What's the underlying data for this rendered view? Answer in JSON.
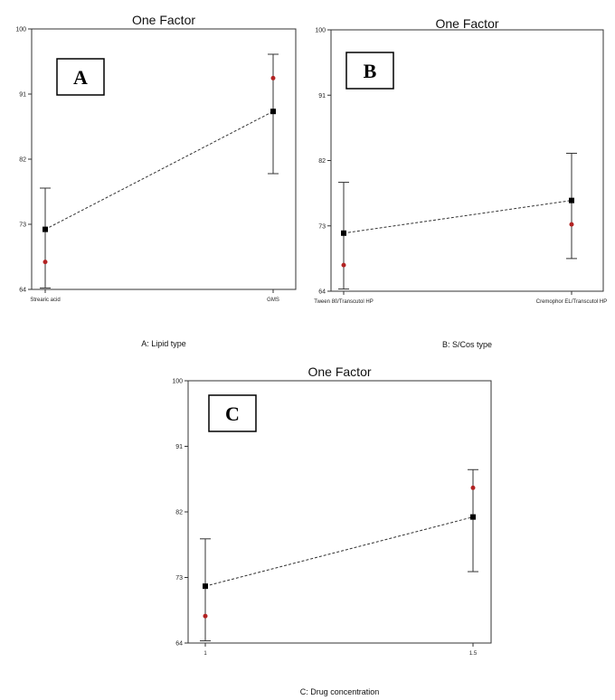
{
  "chart_data": [
    {
      "type": "line",
      "title": "One Factor",
      "panel_label": "A",
      "xlabel": "A: Lipid type",
      "ylabel": "",
      "ylim": [
        64,
        100
      ],
      "yticks": [
        64,
        73,
        82,
        91,
        100
      ],
      "categories": [
        "Strearic acid",
        "GMS"
      ],
      "series": [
        {
          "role": "predicted",
          "values": [
            72.3,
            88.6
          ]
        },
        {
          "role": "upper",
          "values": [
            78.0,
            96.5
          ]
        },
        {
          "role": "lower",
          "values": [
            64.2,
            80.0
          ]
        },
        {
          "role": "actual",
          "values": [
            67.8,
            93.2
          ]
        }
      ]
    },
    {
      "type": "line",
      "title": "One Factor",
      "panel_label": "B",
      "xlabel": "B: S/Cos type",
      "ylabel": "",
      "ylim": [
        64,
        100
      ],
      "yticks": [
        64,
        73,
        82,
        91,
        100
      ],
      "categories": [
        "Tween 80/Transcutol HP",
        "Cremophor EL/Transcutol HP"
      ],
      "series": [
        {
          "role": "predicted",
          "values": [
            72.0,
            76.5
          ]
        },
        {
          "role": "upper",
          "values": [
            79.0,
            83.0
          ]
        },
        {
          "role": "lower",
          "values": [
            64.3,
            68.5
          ]
        },
        {
          "role": "actual",
          "values": [
            67.6,
            73.2
          ]
        }
      ]
    },
    {
      "type": "line",
      "title": "One Factor",
      "panel_label": "C",
      "xlabel": "C: Drug concentration",
      "ylabel": "",
      "ylim": [
        64,
        100
      ],
      "yticks": [
        64,
        73,
        82,
        91,
        100
      ],
      "categories": [
        "1",
        "1.5"
      ],
      "series": [
        {
          "role": "predicted",
          "values": [
            71.8,
            81.3
          ]
        },
        {
          "role": "upper",
          "values": [
            78.3,
            87.8
          ]
        },
        {
          "role": "lower",
          "values": [
            64.3,
            73.8
          ]
        },
        {
          "role": "actual",
          "values": [
            67.7,
            85.3
          ]
        }
      ]
    }
  ],
  "colors": {
    "predicted": "#000000",
    "actual": "#b22222",
    "axis": "#333333",
    "line": "#333333"
  }
}
